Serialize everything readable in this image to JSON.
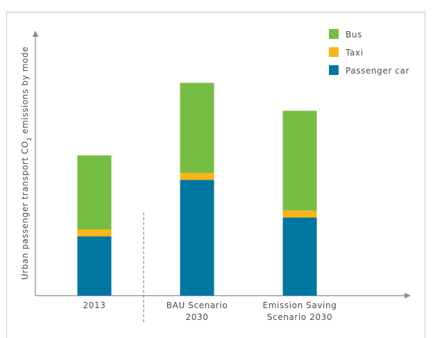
{
  "chart_data": {
    "type": "bar",
    "stacked": true,
    "title": "",
    "xlabel": "",
    "ylabel": {
      "prefix": "Urban passenger transport CO",
      "subscript": "2",
      "suffix": " emissions by mode"
    },
    "categories": [
      [
        "2013"
      ],
      [
        "BAU Scenario",
        "2030"
      ],
      [
        "Emission Saving",
        "Scenario 2030"
      ]
    ],
    "series": [
      {
        "name": "Passenger car",
        "color": "#0077a0",
        "values": [
          85,
          166,
          112
        ]
      },
      {
        "name": "Taxi",
        "color": "#fbb516",
        "values": [
          10,
          10,
          10
        ]
      },
      {
        "name": "Bus",
        "color": "#76bd43",
        "values": [
          106,
          129,
          143
        ]
      }
    ],
    "legend_order": [
      "Bus",
      "Taxi",
      "Passenger car"
    ],
    "legend_position": "top-right",
    "ylim": [
      0,
      380
    ],
    "grid": false,
    "yaxis_ticks": false,
    "separator_between_categories": [
      0,
      1
    ]
  }
}
